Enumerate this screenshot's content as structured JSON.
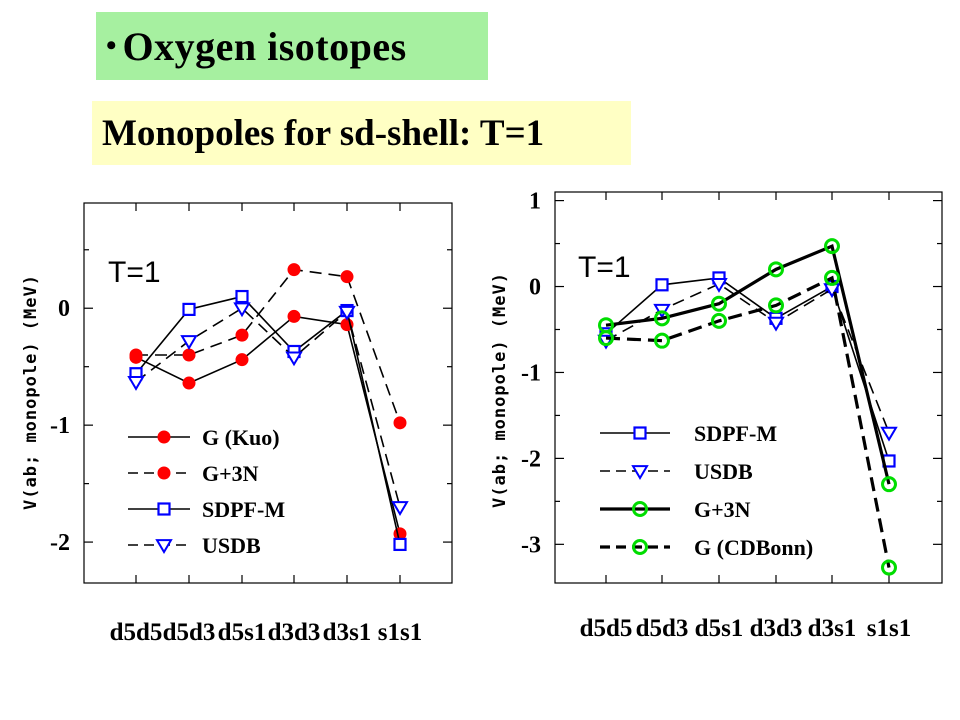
{
  "header": {
    "bullet": "•",
    "title": "Oxygen isotopes",
    "subtitle": "Monopoles for sd-shell:  T=1"
  },
  "colors": {
    "title_bg": "#a6f0a0",
    "subtitle_bg": "#ffffc4",
    "red_marker": "#ff0000",
    "blue_marker": "#0000ff",
    "green_marker": "#00dd00"
  },
  "chart_data": [
    {
      "type": "line",
      "ylabel": "V(ab; monopole) (MeV)",
      "annotation": "T=1",
      "categories": [
        "d5d5",
        "d5d3",
        "d5s1",
        "d3d3",
        "d3s1",
        "s1s1"
      ],
      "ylim": [
        -2.35,
        0.9
      ],
      "yticks": [
        0,
        -1,
        -2
      ],
      "ytick_labels": [
        "0",
        "-1",
        "-2"
      ],
      "legend_position": "bottom-left",
      "series": [
        {
          "name": "G (Kuo)",
          "values": [
            -0.42,
            -0.64,
            -0.44,
            -0.07,
            -0.14,
            -1.93
          ],
          "marker": "circle-filled",
          "color": "#ff0000",
          "dash": "solid"
        },
        {
          "name": "G+3N",
          "values": [
            -0.4,
            -0.4,
            -0.23,
            0.33,
            0.27,
            -0.98
          ],
          "marker": "circle-filled",
          "color": "#ff0000",
          "dash": "dashed"
        },
        {
          "name": "SDPF-M",
          "values": [
            -0.56,
            -0.01,
            0.1,
            -0.37,
            -0.02,
            -2.02
          ],
          "marker": "square-open",
          "color": "#0000ff",
          "dash": "solid"
        },
        {
          "name": "USDB",
          "values": [
            -0.63,
            -0.28,
            0.0,
            -0.42,
            -0.03,
            -1.7
          ],
          "marker": "triangle-down-open",
          "color": "#0000ff",
          "dash": "dashed"
        }
      ]
    },
    {
      "type": "line",
      "ylabel": "V(ab; monopole) (MeV)",
      "annotation": "T=1",
      "categories": [
        "d5d5",
        "d5d3",
        "d5s1",
        "d3d3",
        "d3s1",
        "s1s1"
      ],
      "ylim": [
        -3.45,
        1.1
      ],
      "yticks": [
        1,
        0,
        -1,
        -2,
        -3
      ],
      "ytick_labels": [
        "1",
        "0",
        "-1",
        "-2",
        "-3"
      ],
      "legend_position": "bottom-left",
      "series": [
        {
          "name": "SDPF-M",
          "values": [
            -0.55,
            0.02,
            0.1,
            -0.37,
            0.0,
            -2.03
          ],
          "marker": "square-open",
          "color": "#0000ff",
          "dash": "solid"
        },
        {
          "name": "USDB",
          "values": [
            -0.63,
            -0.27,
            0.03,
            -0.42,
            -0.03,
            -1.7
          ],
          "marker": "triangle-down-open",
          "color": "#0000ff",
          "dash": "dashed"
        },
        {
          "name": "G+3N",
          "values": [
            -0.45,
            -0.37,
            -0.2,
            0.2,
            0.47,
            -2.3
          ],
          "marker": "circle-open",
          "color": "#00dd00",
          "dash": "solid-thick"
        },
        {
          "name": "G (CDBonn)",
          "values": [
            -0.6,
            -0.63,
            -0.4,
            -0.22,
            0.1,
            -3.27
          ],
          "marker": "circle-open",
          "color": "#00dd00",
          "dash": "dashed-thick"
        }
      ]
    }
  ]
}
